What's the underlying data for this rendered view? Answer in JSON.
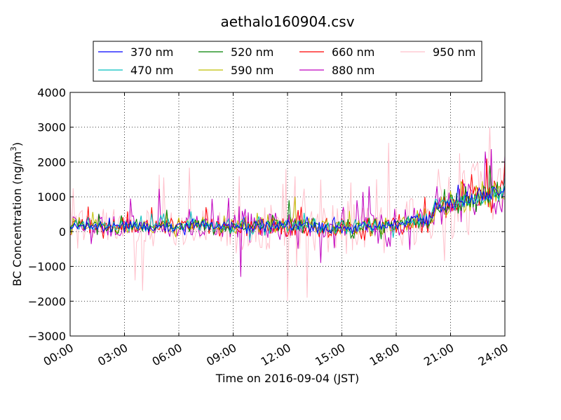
{
  "chart_data": {
    "type": "line",
    "title": "aethalo160904.csv",
    "xlabel": "Time on 2016-09-04 (JST)",
    "ylabel": "BC Concentration (ng/m",
    "ylabel_sup": "3",
    "ylabel_close": ")",
    "ylim": [
      -3000,
      4000
    ],
    "xlim_hours": [
      0,
      24
    ],
    "grid": true,
    "legend_position": "top-center",
    "x_ticks": [
      {
        "hour": 0,
        "label": "00:00"
      },
      {
        "hour": 3,
        "label": "03:00"
      },
      {
        "hour": 6,
        "label": "06:00"
      },
      {
        "hour": 9,
        "label": "09:00"
      },
      {
        "hour": 12,
        "label": "12:00"
      },
      {
        "hour": 15,
        "label": "15:00"
      },
      {
        "hour": 18,
        "label": "18:00"
      },
      {
        "hour": 21,
        "label": "21:00"
      },
      {
        "hour": 24,
        "label": "24:00"
      }
    ],
    "y_ticks": [
      {
        "value": 4000,
        "label": "4000"
      },
      {
        "value": 3000,
        "label": "3000"
      },
      {
        "value": 2000,
        "label": "2000"
      },
      {
        "value": 1000,
        "label": "1000"
      },
      {
        "value": 0,
        "label": "0"
      },
      {
        "value": -1000,
        "label": "−1000"
      },
      {
        "value": -2000,
        "label": "−2000"
      },
      {
        "value": -3000,
        "label": "−3000"
      }
    ],
    "sample_interval_minutes": 5,
    "series": [
      {
        "name": "370 nm",
        "color": "#0000ff",
        "noise": 0.45,
        "peak_hours": []
      },
      {
        "name": "470 nm",
        "color": "#00bfbf",
        "noise": 0.55,
        "peak_hours": []
      },
      {
        "name": "520 nm",
        "color": "#008000",
        "noise": 0.7,
        "peak_hours": [
          [
            12.1,
            900
          ],
          [
            23.2,
            1900
          ],
          [
            21.8,
            1300
          ]
        ]
      },
      {
        "name": "590 nm",
        "color": "#bfbf00",
        "noise": 0.8,
        "peak_hours": [
          [
            12.4,
            1000
          ]
        ]
      },
      {
        "name": "660 nm",
        "color": "#ff0000",
        "noise": 0.95,
        "peak_hours": [
          [
            21.7,
            1500
          ],
          [
            23.0,
            2100
          ]
        ]
      },
      {
        "name": "880 nm",
        "color": "#bf00bf",
        "noise": 1.5,
        "peak_hours": [
          [
            9.4,
            -1300
          ],
          [
            13.8,
            -900
          ],
          [
            15.8,
            900
          ],
          [
            16.5,
            1300
          ],
          [
            22.9,
            2300
          ]
        ]
      },
      {
        "name": "950 nm",
        "color": "#ffc0cb",
        "noise": 2.6,
        "peak_hours": [
          [
            3.6,
            -1400
          ],
          [
            4.0,
            -1700
          ],
          [
            11.9,
            1800
          ],
          [
            12.0,
            -2000
          ],
          [
            13.1,
            -1900
          ],
          [
            17.6,
            2550
          ],
          [
            23.2,
            3000
          ],
          [
            21.5,
            2250
          ],
          [
            22.5,
            2000
          ]
        ]
      }
    ]
  }
}
